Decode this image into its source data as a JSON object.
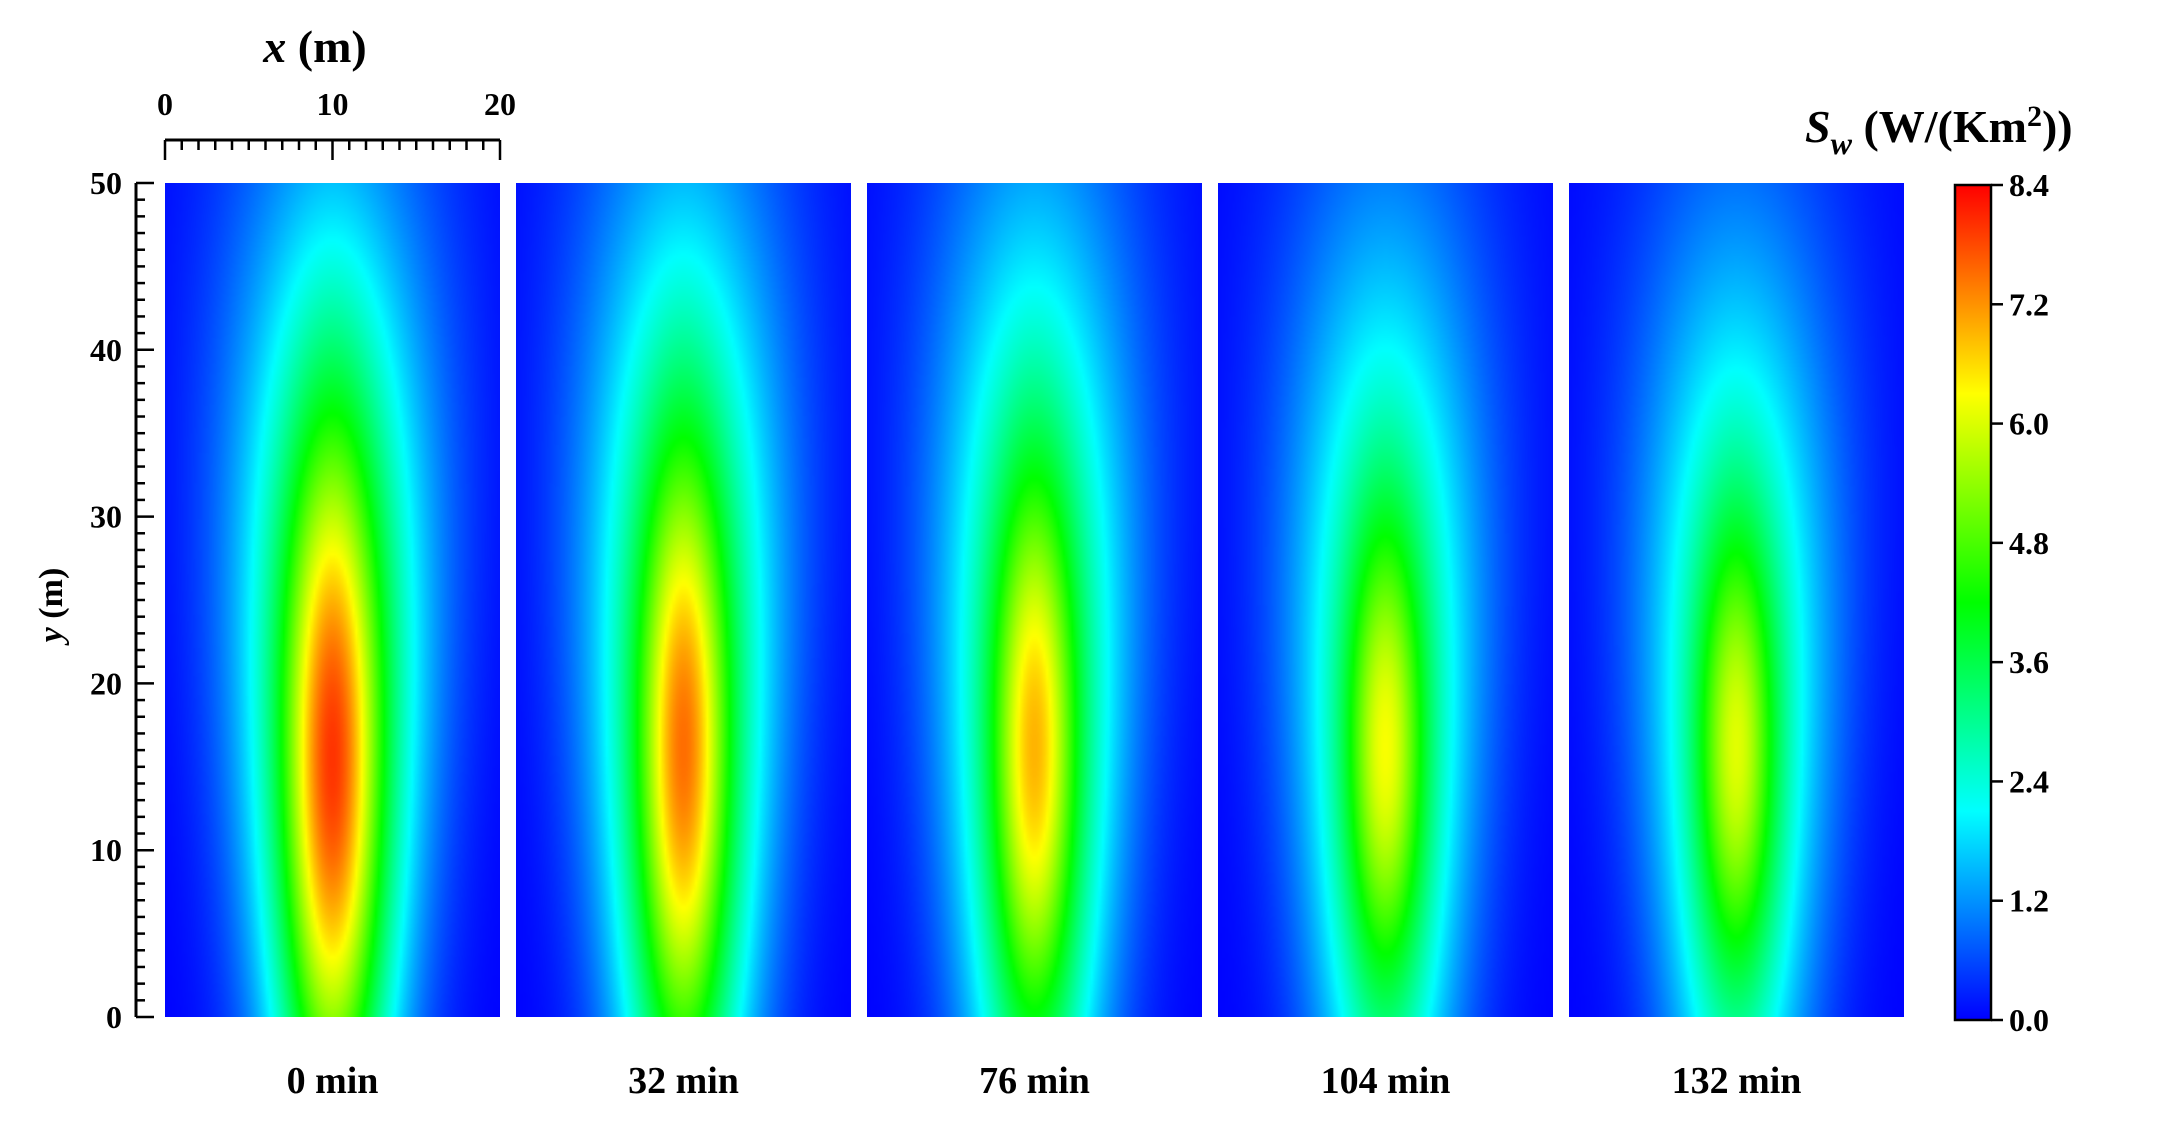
{
  "chart_data": {
    "type": "heatmap",
    "x_axis": {
      "label_var": "x",
      "label_unit": " (m)",
      "range": [
        0,
        20
      ],
      "ticks": [
        0,
        10,
        20
      ]
    },
    "y_axis": {
      "label_var": "y",
      "label_unit": " (m)",
      "range": [
        0,
        50
      ],
      "ticks": [
        0,
        10,
        20,
        30,
        40,
        50
      ]
    },
    "colorbar": {
      "title_var": "S",
      "title_sub": "w",
      "title_unit_pre": " (W/(Km",
      "title_unit_sup": "2",
      "title_unit_post": "))",
      "range": [
        0.0,
        8.4
      ],
      "ticks": [
        "0.0",
        "1.2",
        "2.4",
        "3.6",
        "4.8",
        "6.0",
        "7.2",
        "8.4"
      ],
      "colormap": [
        "#0000ff",
        "#0080ff",
        "#00ffff",
        "#00ff80",
        "#00ff00",
        "#80ff00",
        "#ffff00",
        "#ff8000",
        "#ff0000"
      ]
    },
    "panels": [
      {
        "label": "0 min",
        "peak_value": 8.3,
        "peak_x": 10,
        "peak_y": 15,
        "core_half_height": 19,
        "core_half_width": 2.6,
        "halo_half_height": 31
      },
      {
        "label": "32 min",
        "peak_value": 7.8,
        "peak_x": 10,
        "peak_y": 16,
        "core_half_height": 17,
        "core_half_width": 2.4,
        "halo_half_height": 32
      },
      {
        "label": "76 min",
        "peak_value": 7.2,
        "peak_x": 10,
        "peak_y": 16,
        "core_half_height": 15.5,
        "core_half_width": 2.3,
        "halo_half_height": 32
      },
      {
        "label": "104 min",
        "peak_value": 6.5,
        "peak_x": 10,
        "peak_y": 16,
        "core_half_height": 13.5,
        "core_half_width": 2.2,
        "halo_half_height": 30
      },
      {
        "label": "132 min",
        "peak_value": 6.3,
        "peak_x": 10,
        "peak_y": 16,
        "core_half_height": 13,
        "core_half_width": 2.2,
        "halo_half_height": 29
      }
    ]
  }
}
